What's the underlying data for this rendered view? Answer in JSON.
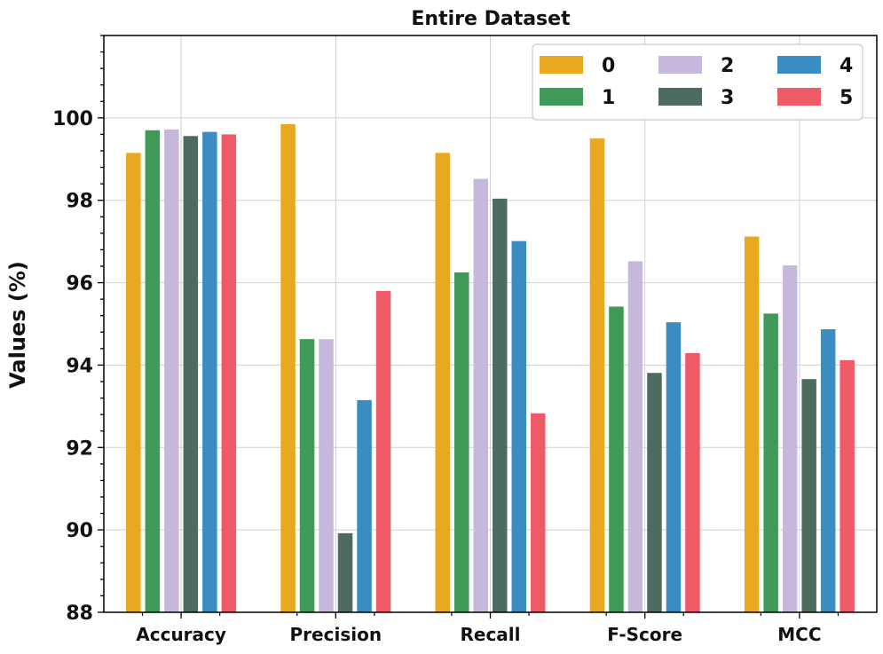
{
  "chart_data": {
    "type": "bar",
    "title": "Entire Dataset",
    "xlabel": "",
    "ylabel": "Values (%)",
    "ylim": [
      88,
      102
    ],
    "yticks": [
      88,
      90,
      92,
      94,
      96,
      98,
      100
    ],
    "grid": true,
    "legend_position": "top-right",
    "categories": [
      "Accuracy",
      "Precision",
      "Recall",
      "F-Score",
      "MCC"
    ],
    "series": [
      {
        "name": "0",
        "color": "#e8a820",
        "values": [
          99.15,
          99.85,
          99.15,
          99.5,
          97.12
        ]
      },
      {
        "name": "1",
        "color": "#3e9a56",
        "values": [
          99.7,
          94.63,
          96.25,
          95.42,
          95.25
        ]
      },
      {
        "name": "2",
        "color": "#c6b8dc",
        "values": [
          99.72,
          94.63,
          98.52,
          96.52,
          96.42
        ]
      },
      {
        "name": "3",
        "color": "#4e6b5f",
        "values": [
          99.56,
          89.92,
          98.04,
          93.81,
          93.66
        ]
      },
      {
        "name": "4",
        "color": "#3a8dc0",
        "values": [
          99.66,
          93.15,
          97.01,
          95.04,
          94.87
        ]
      },
      {
        "name": "5",
        "color": "#ee5a66",
        "values": [
          99.6,
          95.8,
          92.83,
          94.29,
          94.12
        ]
      }
    ]
  }
}
